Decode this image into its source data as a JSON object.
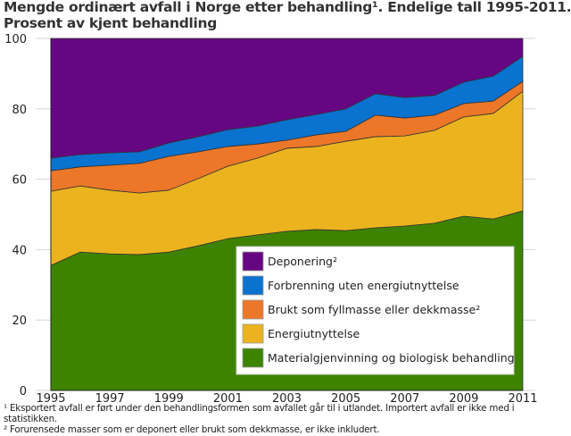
{
  "chart_data": {
    "type": "area",
    "stacked": true,
    "title_line1": "Mengde ordinært avfall i Norge etter behandling¹. Endelige tall 1995-2011.",
    "title_line2": "Prosent av kjent behandling",
    "xlabel": "",
    "ylabel": "",
    "x": [
      1995,
      1996,
      1997,
      1998,
      1999,
      2000,
      2001,
      2002,
      2003,
      2004,
      2005,
      2006,
      2007,
      2008,
      2009,
      2010,
      2011
    ],
    "xticks": [
      "1995",
      "1997",
      "1999",
      "2001",
      "2003",
      "2005",
      "2007",
      "2009",
      "2011"
    ],
    "yticks": [
      "0",
      "20",
      "40",
      "60",
      "80",
      "100"
    ],
    "ylim": [
      0,
      100
    ],
    "grid": true,
    "legend_placement": "bottom-right inside",
    "series": [
      {
        "name": "Materialgjenvinning og biologisk behandling",
        "color": "#3e8300",
        "values": [
          35.5,
          39.3,
          38.8,
          38.6,
          39.3,
          41.1,
          43.1,
          44.2,
          45.2,
          45.7,
          45.4,
          46.2,
          46.7,
          47.5,
          49.5,
          48.7,
          51.0
        ]
      },
      {
        "name": "Energiutnyttelse",
        "color": "#ebb31e",
        "values": [
          21.1,
          18.8,
          18.1,
          17.5,
          17.6,
          19.1,
          20.6,
          21.8,
          23.6,
          23.6,
          25.4,
          25.9,
          25.6,
          26.4,
          28.2,
          30.0,
          34.0
        ]
      },
      {
        "name": "Brukt som fyllmasse eller dekkmasse²",
        "color": "#ec7728",
        "values": [
          5.8,
          5.4,
          7.1,
          8.4,
          9.6,
          7.6,
          5.6,
          4.0,
          2.3,
          3.3,
          2.8,
          6.1,
          5.1,
          4.3,
          3.8,
          3.5,
          2.8
        ]
      },
      {
        "name": "Forbrenning uten energiutnyttelse",
        "color": "#0a72cf",
        "values": [
          3.6,
          3.5,
          3.5,
          3.3,
          3.8,
          4.3,
          4.8,
          5.1,
          5.8,
          5.8,
          6.4,
          6.1,
          5.8,
          5.6,
          6.1,
          7.1,
          7.1
        ]
      },
      {
        "name": "Deponering²",
        "color": "#660682",
        "values": [
          34.0,
          33.0,
          32.5,
          32.2,
          29.7,
          27.9,
          25.9,
          24.9,
          23.1,
          21.6,
          20.0,
          15.7,
          16.8,
          16.2,
          12.4,
          10.7,
          5.1
        ]
      }
    ],
    "legend_order": [
      "Deponering²",
      "Forbrenning uten energiutnyttelse",
      "Brukt som fyllmasse eller dekkmasse²",
      "Energiutnyttelse",
      "Materialgjenvinning og biologisk behandling"
    ]
  },
  "footnotes": {
    "note1_line1": "¹ Eksportert avfall er ført under den behandlingsformen som avfallet går til i utlandet. Importert avfall er ikke med i",
    "note1_line2": "statistikken.",
    "note2": "² Forurensede masser som er deponert eller brukt som dekkmasse, er ikke inkludert."
  }
}
